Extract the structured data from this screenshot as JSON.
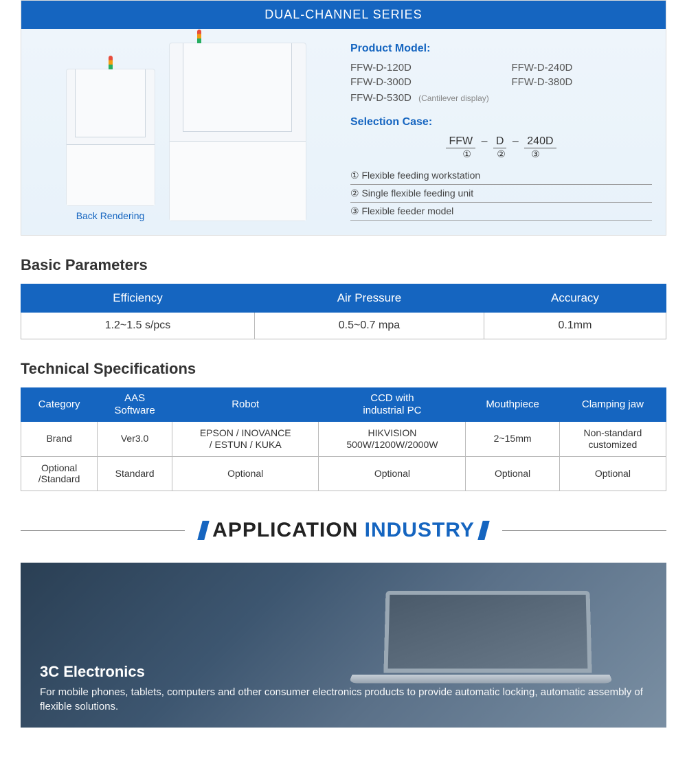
{
  "colors": {
    "primary": "#1565c0",
    "border": "#bbbbbb",
    "text": "#333333"
  },
  "hero": {
    "header": "DUAL-CHANNEL SERIES",
    "back_rendering": "Back Rendering",
    "product_model_label": "Product Model:",
    "models": [
      "FFW-D-120D",
      "FFW-D-240D",
      "FFW-D-300D",
      "FFW-D-380D"
    ],
    "cantilever_model": "FFW-D-530D",
    "cantilever_note": "(Cantilever display)",
    "selection_label": "Selection Case:",
    "parts": [
      "FFW",
      "D",
      "240D"
    ],
    "subs": [
      "①",
      "②",
      "③"
    ],
    "legend": [
      "①  Flexible feeding workstation",
      "②  Single flexible feeding unit",
      "③  Flexible feeder model"
    ]
  },
  "params": {
    "title": "Basic Parameters",
    "columns": [
      "Efficiency",
      "Air Pressure",
      "Accuracy"
    ],
    "rows": [
      [
        "1.2~1.5 s/pcs",
        "0.5~0.7 mpa",
        "0.1mm"
      ]
    ]
  },
  "spec": {
    "title": "Technical Specifications",
    "columns": [
      "Category",
      "AAS\nSoftware",
      "Robot",
      "CCD with\nindustrial PC",
      "Mouthpiece",
      "Clamping jaw"
    ],
    "rows": [
      [
        "Brand",
        "Ver3.0",
        "EPSON / INOVANCE\n/ ESTUN / KUKA",
        "HIKVISION\n500W/1200W/2000W",
        "2~15mm",
        "Non-standard\ncustomized"
      ],
      [
        "Optional\n/Standard",
        "Standard",
        "Optional",
        "Optional",
        "Optional",
        "Optional"
      ]
    ]
  },
  "app": {
    "heading_w1": "APPLICATION",
    "heading_w2": "INDUSTRY",
    "banner_title": "3C Electronics",
    "banner_desc": "For mobile phones, tablets, computers and other consumer electronics products to provide automatic locking, automatic assembly of flexible solutions."
  }
}
